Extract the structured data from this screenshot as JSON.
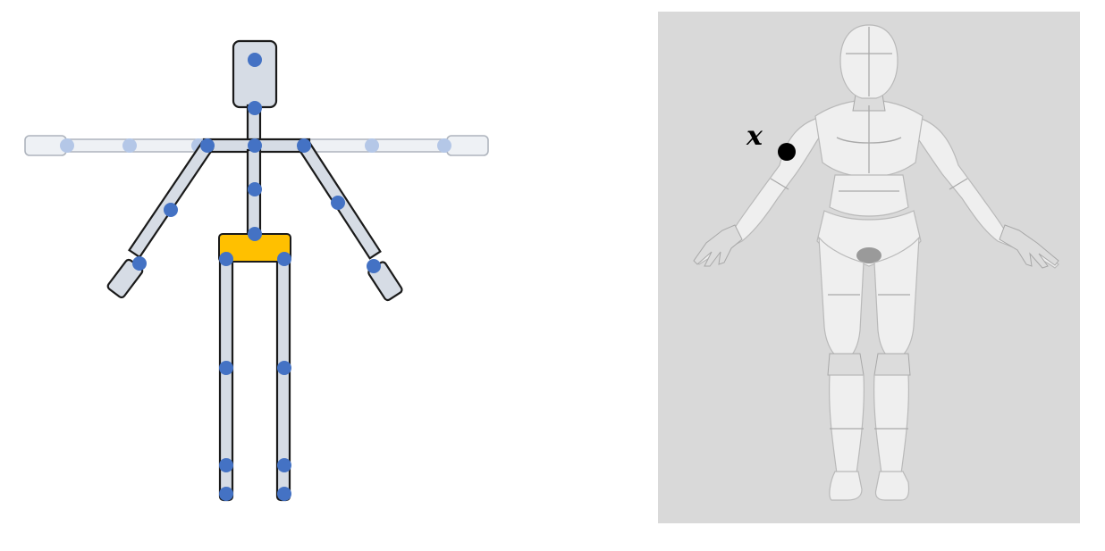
{
  "colors": {
    "bone_fill": "#d6dce5",
    "bone_stroke": "#1a1a1a",
    "joint": "#4472c4",
    "ghost_joint": "#b4c7e7",
    "pelvis": "#ffc000",
    "panel_bg": "#d9d9d9",
    "marker": "#000000"
  },
  "mesh_panel": {
    "marker_label": "x"
  }
}
